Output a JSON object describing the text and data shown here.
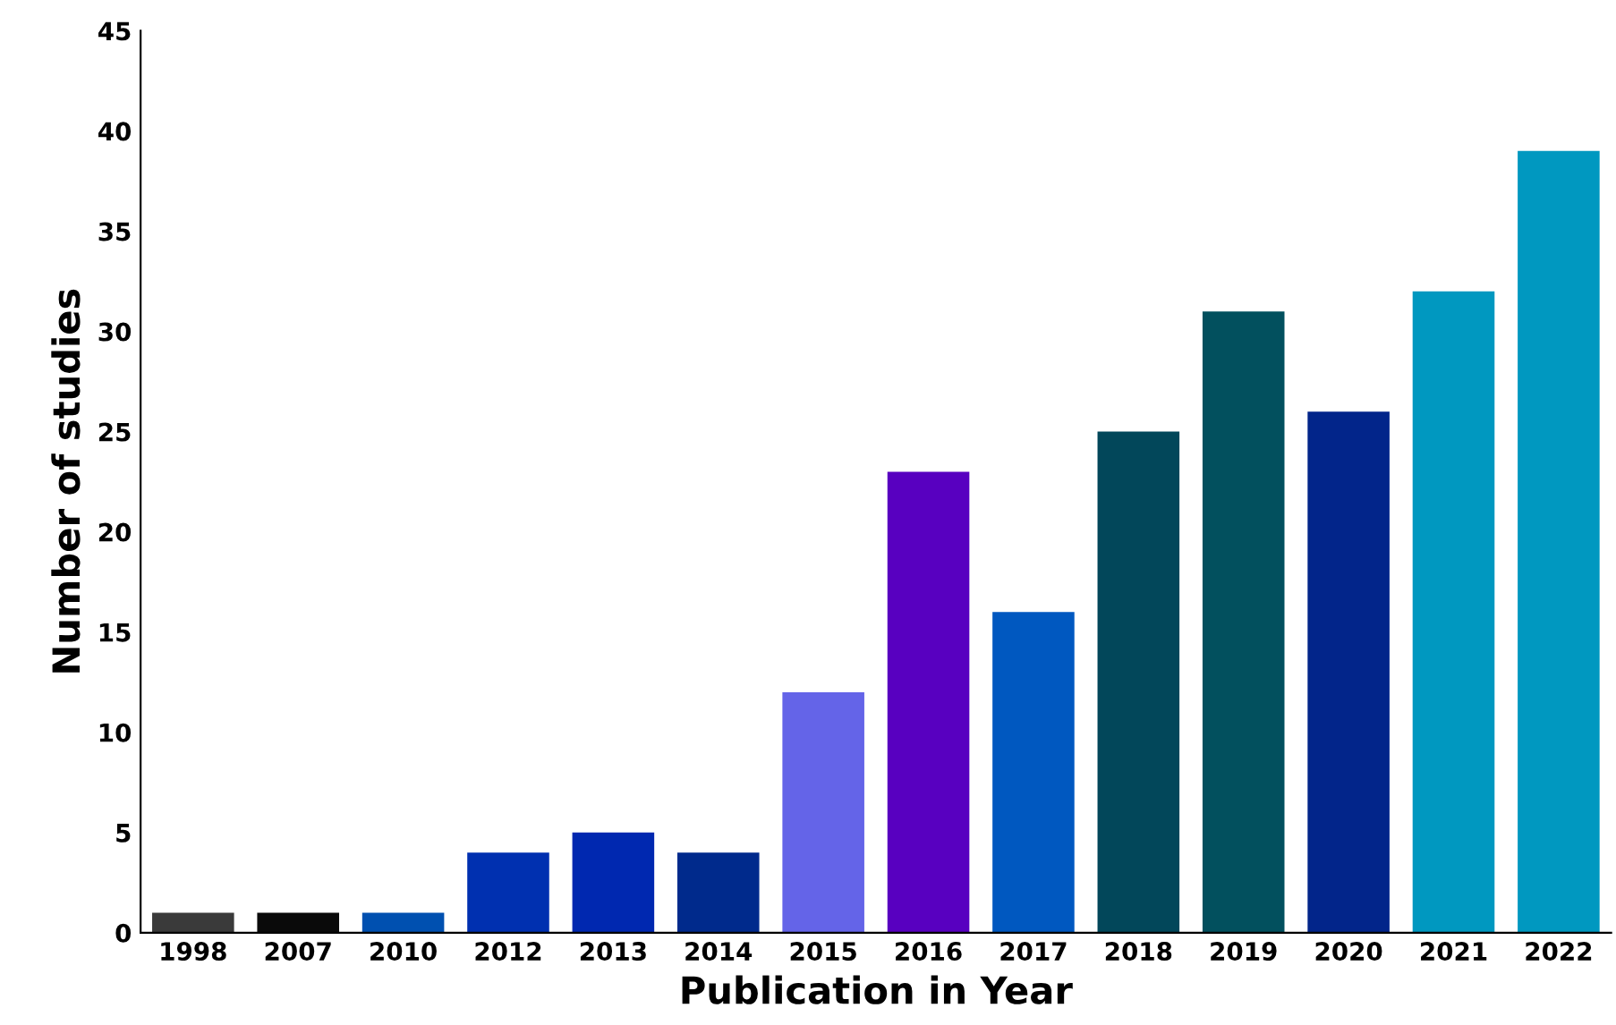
{
  "chart_data": {
    "type": "bar",
    "xlabel": "Publication in Year",
    "ylabel": "Number of studies",
    "categories": [
      "1998",
      "2007",
      "2010",
      "2012",
      "2013",
      "2014",
      "2015",
      "2016",
      "2017",
      "2018",
      "2019",
      "2020",
      "2021",
      "2022"
    ],
    "values": [
      1,
      1,
      1,
      4,
      5,
      4,
      12,
      23,
      16,
      25,
      31,
      26,
      32,
      39
    ],
    "colors": [
      "#3a3a3a",
      "#0a0a0a",
      "#0050b0",
      "#0030b0",
      "#0028b0",
      "#002a8c",
      "#6464e8",
      "#5800c0",
      "#0058c0",
      "#02475a",
      "#02505e",
      "#02258a",
      "#0098c0",
      "#0098c0"
    ],
    "ylim": [
      0,
      45
    ],
    "yticks": [
      0,
      5,
      10,
      15,
      20,
      25,
      30,
      35,
      40,
      45
    ],
    "grid": false
  }
}
